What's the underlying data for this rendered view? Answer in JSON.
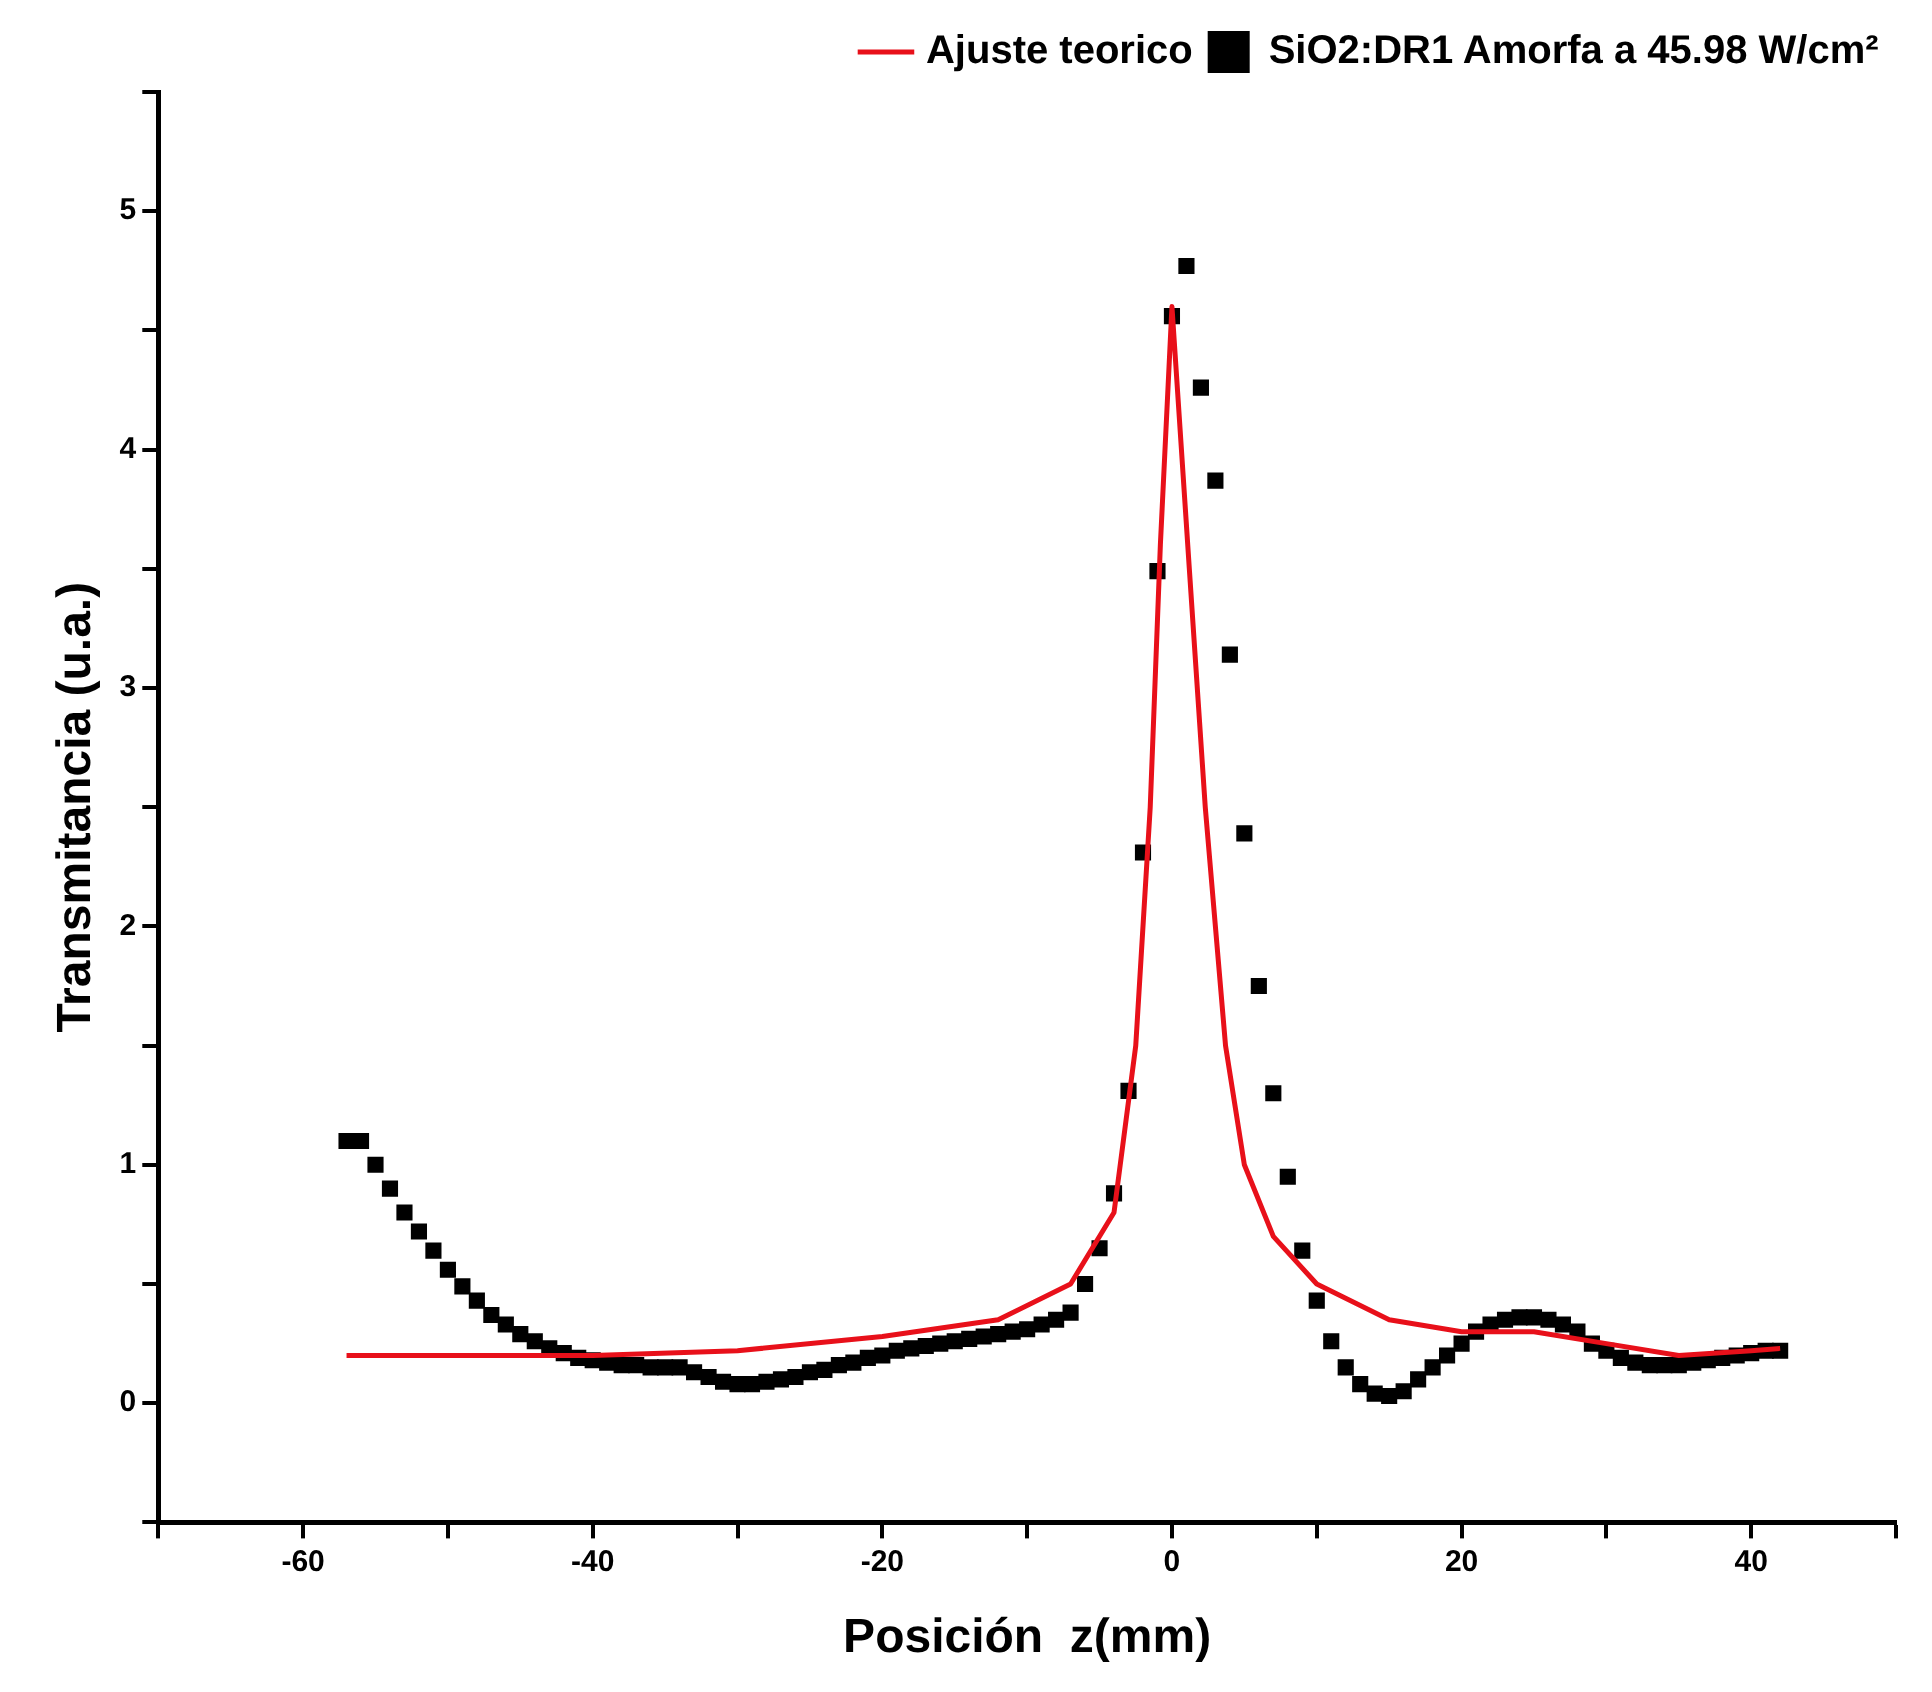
{
  "chart_data": {
    "type": "scatter",
    "xlabel": "Posición  z(mm)",
    "ylabel": "Transmitancia (u.a.)",
    "xlim": [
      -70,
      50
    ],
    "xticks": [
      {
        "value": -70,
        "label": null
      },
      -60,
      {
        "value": -50,
        "label": null
      },
      -40,
      {
        "value": -30,
        "label": null
      },
      -20,
      {
        "value": -10,
        "label": null
      },
      0,
      {
        "value": 10,
        "label": null
      },
      20,
      {
        "value": 30,
        "label": null
      },
      40,
      {
        "value": 50,
        "label": null
      }
    ],
    "ylim": [
      -0.5,
      5.5
    ],
    "yticks": [
      {
        "value": -0.5,
        "label": null
      },
      0,
      {
        "value": 0.5,
        "label": null
      },
      1,
      {
        "value": 1.5,
        "label": null
      },
      2,
      {
        "value": 2.5,
        "label": null
      },
      3,
      {
        "value": 3.5,
        "label": null
      },
      4,
      {
        "value": 4.5,
        "label": null
      },
      5,
      {
        "value": 5.5,
        "label": null
      }
    ],
    "grid": false,
    "legend": "top right",
    "series": [
      {
        "name": "SiO2:DR1 Amorfa a 45.98 W/cm²",
        "marker": "square",
        "color": "#000000",
        "x": [
          -57,
          -56,
          -55,
          -54,
          -53,
          -52,
          -51,
          -50,
          -49,
          -48,
          -47,
          -46,
          -45,
          -44,
          -43,
          -42,
          -41,
          -40,
          -39,
          -38,
          -37,
          -36,
          -35,
          -34,
          -33,
          -32,
          -31,
          -30,
          -29,
          -28,
          -27,
          -26,
          -25,
          -24,
          -23,
          -22,
          -21,
          -20,
          -19,
          -18,
          -17,
          -16,
          -15,
          -14,
          -13,
          -12,
          -11,
          -10,
          -9,
          -8,
          -7,
          -6,
          -5,
          -4,
          -3,
          -2,
          -1,
          0,
          1,
          2,
          3,
          4,
          5,
          6,
          7,
          8,
          9,
          10,
          11,
          12,
          13,
          14,
          15,
          16,
          17,
          18,
          19,
          20,
          21,
          22,
          23,
          24,
          25,
          26,
          27,
          28,
          29,
          30,
          31,
          32,
          33,
          34,
          35,
          36,
          37,
          38,
          39,
          40,
          41,
          42
        ],
        "values": [
          1.1,
          1.1,
          1.0,
          0.9,
          0.8,
          0.72,
          0.64,
          0.56,
          0.49,
          0.43,
          0.37,
          0.33,
          0.29,
          0.26,
          0.23,
          0.21,
          0.19,
          0.18,
          0.17,
          0.16,
          0.16,
          0.15,
          0.15,
          0.15,
          0.13,
          0.11,
          0.09,
          0.08,
          0.08,
          0.09,
          0.1,
          0.11,
          0.13,
          0.14,
          0.16,
          0.17,
          0.19,
          0.2,
          0.22,
          0.23,
          0.24,
          0.25,
          0.26,
          0.27,
          0.28,
          0.29,
          0.3,
          0.31,
          0.33,
          0.35,
          0.38,
          0.5,
          0.65,
          0.88,
          1.31,
          2.31,
          3.49,
          4.56,
          4.77,
          4.26,
          3.87,
          3.14,
          2.39,
          1.75,
          1.3,
          0.95,
          0.64,
          0.43,
          0.26,
          0.15,
          0.08,
          0.04,
          0.03,
          0.05,
          0.1,
          0.15,
          0.2,
          0.25,
          0.3,
          0.33,
          0.35,
          0.36,
          0.36,
          0.35,
          0.33,
          0.3,
          0.25,
          0.22,
          0.19,
          0.17,
          0.16,
          0.16,
          0.16,
          0.17,
          0.18,
          0.19,
          0.2,
          0.21,
          0.22,
          0.22
        ]
      },
      {
        "name": "Ajuste teorico",
        "type": "line",
        "marker": "none",
        "line_style": "solid",
        "color": "#e8101a",
        "x": [
          -57,
          -50,
          -40,
          -30,
          -20,
          -12,
          -7,
          -4,
          -2.5,
          -1.5,
          -0.8,
          0,
          1.2,
          2.3,
          3.7,
          5,
          7,
          10,
          15,
          20,
          25,
          30,
          35,
          40,
          42
        ],
        "values": [
          0.2,
          0.2,
          0.2,
          0.22,
          0.28,
          0.35,
          0.5,
          0.8,
          1.5,
          2.5,
          3.6,
          4.6,
          3.5,
          2.5,
          1.5,
          1.0,
          0.7,
          0.5,
          0.35,
          0.3,
          0.3,
          0.25,
          0.2,
          0.22,
          0.23
        ]
      }
    ]
  }
}
